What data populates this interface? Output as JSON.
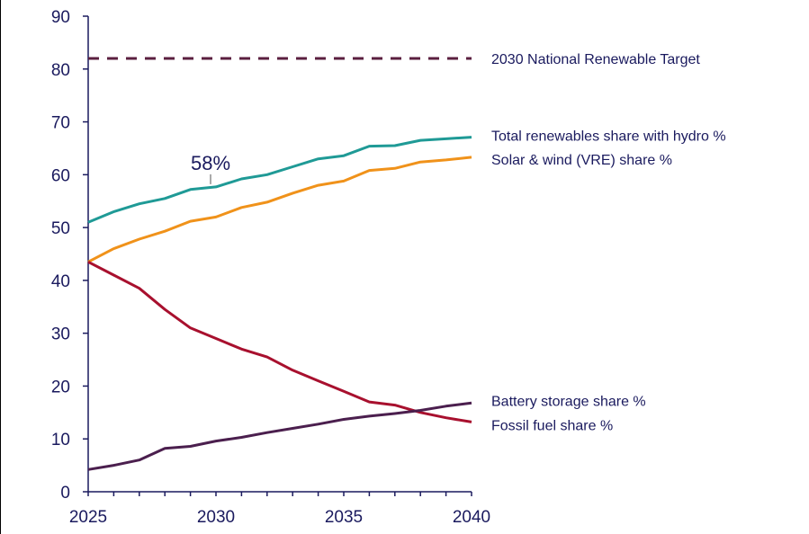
{
  "chart_data": {
    "type": "line",
    "title": "",
    "xlabel": "",
    "ylabel": "",
    "xlim": [
      2025,
      2040
    ],
    "ylim": [
      0,
      90
    ],
    "xticks": [
      "2025",
      "2030",
      "2035",
      "2040"
    ],
    "yticks": [
      "0",
      "10",
      "20",
      "30",
      "40",
      "50",
      "60",
      "70",
      "80",
      "90"
    ],
    "grid": false,
    "legend": "labels at right end of lines",
    "x": [
      2025,
      2026,
      2027,
      2028,
      2029,
      2030,
      2031,
      2032,
      2033,
      2034,
      2035,
      2036,
      2037,
      2038,
      2039,
      2040
    ],
    "series": [
      {
        "name": "2030 National Renewable Target",
        "color": "#5b1f3f",
        "style": "dashed",
        "values": [
          82,
          82,
          82,
          82,
          82,
          82,
          82,
          82,
          82,
          82,
          82,
          82,
          82,
          82,
          82,
          82
        ]
      },
      {
        "name": "Total renewables share with hydro %",
        "color": "#1f9a96",
        "style": "solid",
        "values": [
          51,
          53,
          54.5,
          55.5,
          57.2,
          57.7,
          59.2,
          60,
          61.5,
          63,
          63.6,
          65.4,
          65.5,
          66.5,
          66.8,
          67.1
        ]
      },
      {
        "name": "Solar & wind (VRE) share %",
        "color": "#f0921a",
        "style": "solid",
        "values": [
          43.5,
          46,
          47.8,
          49.3,
          51.2,
          52,
          53.8,
          54.8,
          56.5,
          58,
          58.8,
          60.8,
          61.2,
          62.4,
          62.8,
          63.3
        ]
      },
      {
        "name": "Fossil fuel share %",
        "color": "#a8102e",
        "style": "solid",
        "values": [
          43.5,
          41,
          38.5,
          34.5,
          31,
          29,
          27,
          25.5,
          23,
          21,
          19,
          17,
          16.4,
          15,
          14,
          13.2
        ]
      },
      {
        "name": "Battery storage share %",
        "color": "#4b1f4e",
        "style": "solid",
        "values": [
          4.2,
          5,
          6,
          8.2,
          8.6,
          9.6,
          10.3,
          11.2,
          12,
          12.8,
          13.7,
          14.3,
          14.8,
          15.4,
          16.2,
          16.8
        ]
      }
    ],
    "annotations": [
      {
        "text": "58%",
        "x": 2030,
        "y": 57.7
      }
    ]
  }
}
